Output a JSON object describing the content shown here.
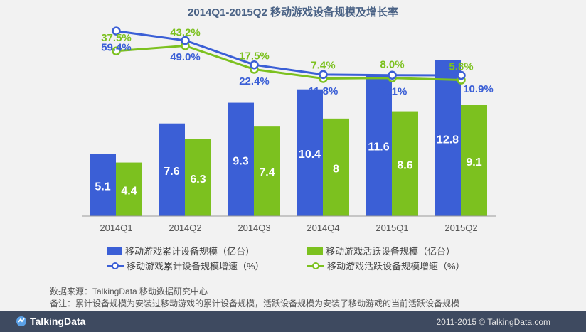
{
  "chart_data": {
    "title": "2014Q1-2015Q2 移动游戏设备规模及增长率",
    "type": "bar+line",
    "categories": [
      "2014Q1",
      "2014Q2",
      "2014Q3",
      "2014Q4",
      "2015Q1",
      "2015Q2"
    ],
    "series": [
      {
        "name": "移动游戏累计设备规模（亿台）",
        "kind": "bar",
        "color": "#3b5fd6",
        "values": [
          5.1,
          7.6,
          9.3,
          10.4,
          11.6,
          12.8
        ]
      },
      {
        "name": "移动游戏活跃设备规模（亿台）",
        "kind": "bar",
        "color": "#7cc11f",
        "values": [
          4.4,
          6.3,
          7.4,
          8.0,
          8.6,
          9.1
        ]
      },
      {
        "name": "移动游戏累计设备规模增速（%）",
        "kind": "line",
        "color": "#3b5fd6",
        "values": [
          59.4,
          49.0,
          22.4,
          11.8,
          11.1,
          10.9
        ],
        "labels": [
          "59.4%",
          "49.0%",
          "22.4%",
          "11.8%",
          "11.1%",
          "10.9%"
        ]
      },
      {
        "name": "移动游戏活跃设备规模增速（%）",
        "kind": "line",
        "color": "#7cc11f",
        "values": [
          37.5,
          43.2,
          17.5,
          7.4,
          8.0,
          5.8
        ],
        "labels": [
          "37.5%",
          "43.2%",
          "17.5%",
          "7.4%",
          "8.0%",
          "5.8%"
        ]
      }
    ]
  },
  "notes": {
    "source": "数据来源：TalkingData 移动数据研究中心",
    "remark": "备注：累计设备规模为安装过移动游戏的累计设备规模，活跃设备规模为安装了移动游戏的当前活跃设备规模"
  },
  "footer": {
    "brand": "TalkingData",
    "copyright": "2011-2015 © TalkingData.com"
  }
}
